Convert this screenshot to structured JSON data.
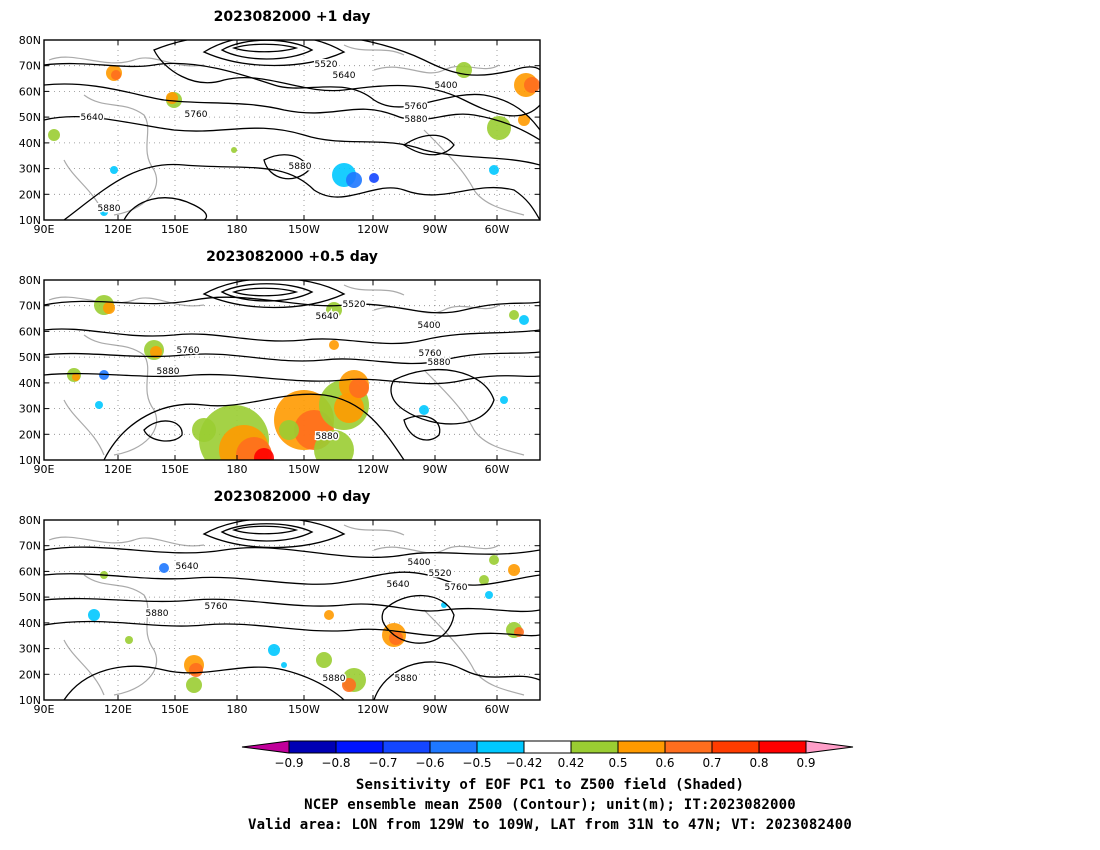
{
  "panels": [
    {
      "title": "2023082000  +1 day",
      "contour_labels": [
        "5520",
        "5640",
        "5400",
        "5640",
        "5760",
        "5760",
        "5880",
        "5880",
        "5880"
      ]
    },
    {
      "title": "2023082000  +0.5 day",
      "contour_labels": [
        "5520",
        "5640",
        "5400",
        "5760",
        "5760",
        "5880",
        "5880",
        "5880"
      ]
    },
    {
      "title": "2023082000  +0 day",
      "contour_labels": [
        "5640",
        "5400",
        "5520",
        "5640",
        "5760",
        "5760",
        "5880",
        "5880",
        "5880"
      ]
    }
  ],
  "lat_labels": [
    "80N",
    "70N",
    "60N",
    "50N",
    "40N",
    "30N",
    "20N",
    "10N"
  ],
  "lon_labels": [
    "90E",
    "120E",
    "150E",
    "180",
    "150W",
    "120W",
    "90W",
    "60W"
  ],
  "colorbar": {
    "tick_labels": [
      "−0.9",
      "−0.8",
      "−0.7",
      "−0.6",
      "−0.5",
      "−0.42",
      "0.42",
      "0.5",
      "0.6",
      "0.7",
      "0.8",
      "0.9"
    ],
    "colors": [
      "#c0009a",
      "#0000b4",
      "#0014ff",
      "#1446ff",
      "#1e78ff",
      "#00c8ff",
      "#ffffff",
      "#9acd32",
      "#ff9a00",
      "#ff6e1e",
      "#ff3c00",
      "#ff0000",
      "#ff9ec8"
    ]
  },
  "captions": {
    "line1": "Sensitivity of EOF PC1 to Z500 field (Shaded)",
    "line2": "NCEP ensemble mean Z500 (Contour); unit(m); IT:2023082000",
    "line3": "Valid area: LON from 129W to 109W, LAT from 31N to 47N; VT: 2023082400"
  }
}
